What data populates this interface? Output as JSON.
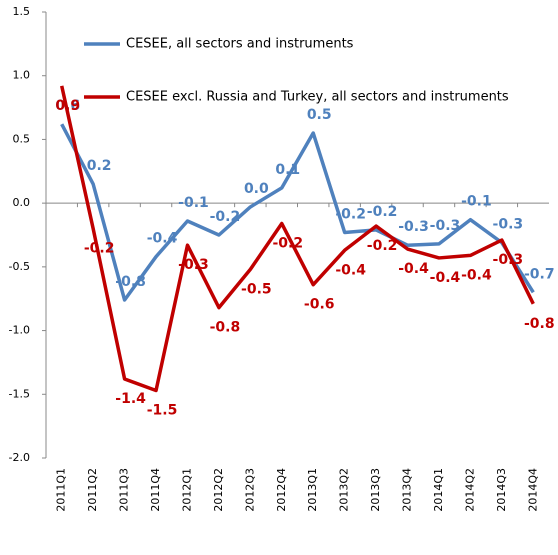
{
  "chart_data": {
    "type": "line",
    "categories": [
      "2011Q1",
      "2011Q2",
      "2011Q3",
      "2011Q4",
      "2012Q1",
      "2012Q2",
      "2012Q3",
      "2012Q4",
      "2013Q1",
      "2013Q2",
      "2013Q3",
      "2013Q4",
      "2014Q1",
      "2014Q2",
      "2014Q3",
      "2014Q4"
    ],
    "series": [
      {
        "name": "CESEE, all sectors and instruments",
        "color": "#4f81bd",
        "values": [
          0.62,
          0.15,
          -0.76,
          -0.42,
          -0.14,
          -0.25,
          -0.03,
          0.12,
          0.55,
          -0.23,
          -0.21,
          -0.33,
          -0.32,
          -0.13,
          -0.31,
          -0.7
        ],
        "value_labels": [
          "0.6",
          "0.2",
          "-0.8",
          "-0.4",
          "-0.1",
          "-0.2",
          "0.0",
          "0.1",
          "0.5",
          "-0.2",
          "-0.2",
          "-0.3",
          "-0.3",
          "-0.1",
          "-0.3",
          "-0.7"
        ]
      },
      {
        "name": "CESEE excl. Russia and Turkey, all sectors and instruments",
        "color": "#c00000",
        "values": [
          0.92,
          -0.2,
          -1.38,
          -1.47,
          -0.33,
          -0.82,
          -0.52,
          -0.16,
          -0.64,
          -0.37,
          -0.18,
          -0.36,
          -0.43,
          -0.41,
          -0.29,
          -0.79
        ],
        "value_labels": [
          "0.9",
          "-0.2",
          "-1.4",
          "-1.5",
          "-0.3",
          "-0.8",
          "-0.5",
          "-0.2",
          "-0.6",
          "-0.4",
          "-0.2",
          "-0.4",
          "-0.4",
          "-0.4",
          "-0.3",
          "-0.8"
        ]
      }
    ],
    "ylim": [
      -2.0,
      1.5
    ],
    "yticks": [
      {
        "value": -2.0,
        "label": "-2.0"
      },
      {
        "value": -1.5,
        "label": "-1.5"
      },
      {
        "value": -1.0,
        "label": "-1.0"
      },
      {
        "value": -0.5,
        "label": "-0.5"
      },
      {
        "value": 0.0,
        "label": "0.0"
      },
      {
        "value": 0.5,
        "label": "0.5"
      },
      {
        "value": 1.0,
        "label": "1.0"
      },
      {
        "value": 1.5,
        "label": "1.5"
      }
    ]
  }
}
